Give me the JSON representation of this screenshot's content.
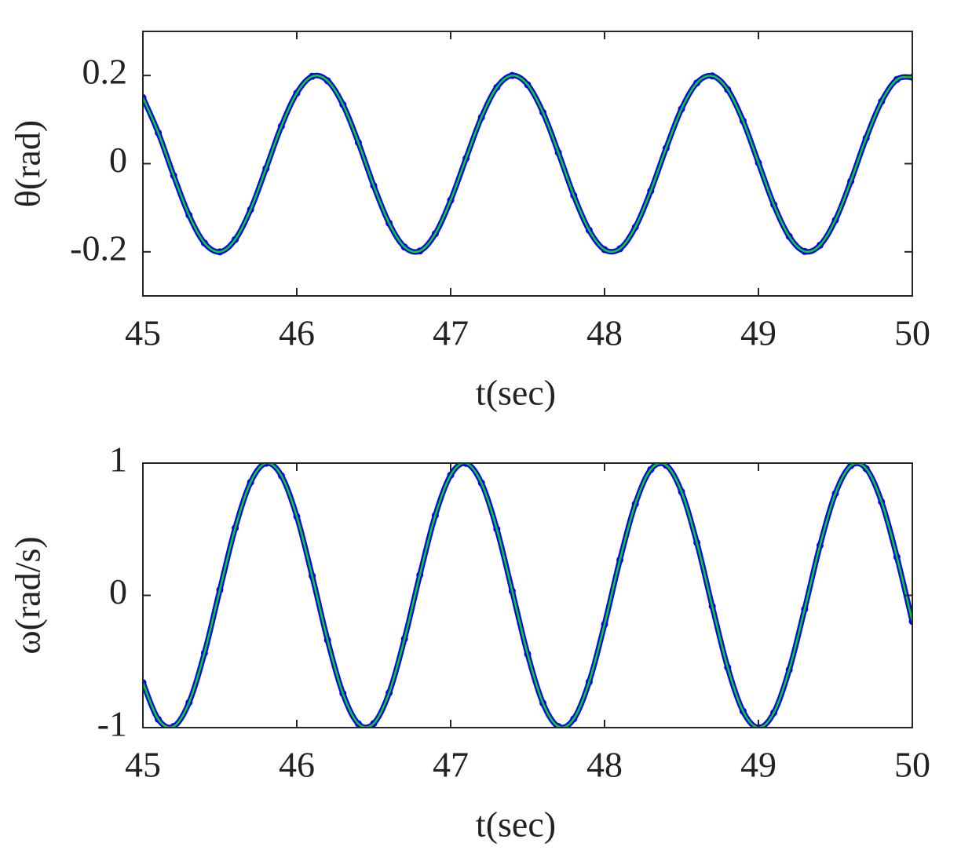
{
  "chart_data": [
    {
      "type": "line",
      "xlabel": "t(sec)",
      "ylabel": "θ(rad)",
      "xlim": [
        45,
        50
      ],
      "xticks": [
        45,
        46,
        47,
        48,
        49,
        50
      ],
      "ylim": [
        -0.3,
        0.3
      ],
      "yticks": [
        -0.2,
        0,
        0.2
      ],
      "x": [
        45,
        45.1,
        45.2,
        45.3,
        45.4,
        45.5,
        45.6,
        45.7,
        45.8,
        45.9,
        46,
        46.1,
        46.2,
        46.3,
        46.4,
        46.5,
        46.6,
        46.7,
        46.8,
        46.9,
        47,
        47.1,
        47.2,
        47.3,
        47.4,
        47.5,
        47.6,
        47.7,
        47.8,
        47.9,
        48,
        48.1,
        48.2,
        48.3,
        48.4,
        48.5,
        48.6,
        48.7,
        48.8,
        48.9,
        49,
        49.1,
        49.2,
        49.3,
        49.4,
        49.5,
        49.6,
        49.7,
        49.8,
        49.9,
        50
      ],
      "series": [
        {
          "color": "#0000ff",
          "style": "dots",
          "values": [
            0.15,
            0.07,
            -0.027,
            -0.117,
            -0.18,
            -0.2,
            -0.172,
            -0.104,
            -0.011,
            0.085,
            0.16,
            0.198,
            0.188,
            0.134,
            0.048,
            -0.05,
            -0.135,
            -0.189,
            -0.198,
            -0.159,
            -0.083,
            0.012,
            0.105,
            0.173,
            0.2,
            0.179,
            0.116,
            0.025,
            -0.072,
            -0.151,
            -0.195,
            -0.193,
            -0.144,
            -0.062,
            0.035,
            0.124,
            0.183,
            0.199,
            0.168,
            0.097,
            0.002,
            -0.093,
            -0.165,
            -0.199,
            -0.185,
            -0.128,
            -0.04,
            0.058,
            0.141,
            0.191,
            0.196
          ]
        },
        {
          "color": "#00dd00",
          "style": "line",
          "values": [
            0.15,
            0.07,
            -0.027,
            -0.117,
            -0.18,
            -0.2,
            -0.172,
            -0.104,
            -0.011,
            0.085,
            0.16,
            0.198,
            0.188,
            0.134,
            0.048,
            -0.05,
            -0.135,
            -0.189,
            -0.198,
            -0.159,
            -0.083,
            0.012,
            0.105,
            0.173,
            0.2,
            0.179,
            0.116,
            0.025,
            -0.072,
            -0.151,
            -0.195,
            -0.193,
            -0.144,
            -0.062,
            0.035,
            0.124,
            0.183,
            0.199,
            0.168,
            0.097,
            0.002,
            -0.093,
            -0.165,
            -0.199,
            -0.185,
            -0.128,
            -0.04,
            0.058,
            0.141,
            0.191,
            0.196
          ]
        }
      ]
    },
    {
      "type": "line",
      "xlabel": "t(sec)",
      "ylabel": "ω(rad/s)",
      "xlim": [
        45,
        50
      ],
      "xticks": [
        45,
        46,
        47,
        48,
        49,
        50
      ],
      "ylim": [
        -1,
        1
      ],
      "yticks": [
        -1,
        0,
        1
      ],
      "x": [
        45,
        45.1,
        45.2,
        45.3,
        45.4,
        45.5,
        45.6,
        45.7,
        45.8,
        45.9,
        46,
        46.1,
        46.2,
        46.3,
        46.4,
        46.5,
        46.6,
        46.7,
        46.8,
        46.9,
        47,
        47.1,
        47.2,
        47.3,
        47.4,
        47.5,
        47.6,
        47.7,
        47.8,
        47.9,
        48,
        48.1,
        48.2,
        48.3,
        48.4,
        48.5,
        48.6,
        48.7,
        48.8,
        48.9,
        49,
        49.1,
        49.2,
        49.3,
        49.4,
        49.5,
        49.6,
        49.7,
        49.8,
        49.9,
        50
      ],
      "series": [
        {
          "color": "#0000ff",
          "style": "dots",
          "values": [
            -0.66,
            -0.937,
            -0.991,
            -0.81,
            -0.436,
            0.041,
            0.509,
            0.855,
            0.999,
            0.905,
            0.597,
            0.147,
            -0.338,
            -0.742,
            -0.971,
            -0.969,
            -0.737,
            -0.329,
            0.155,
            0.604,
            0.909,
            0.998,
            0.85,
            0.501,
            0.032,
            -0.444,
            -0.815,
            -0.992,
            -0.934,
            -0.654,
            -0.219,
            0.268,
            0.691,
            0.951,
            0.984,
            0.784,
            0.398,
            -0.083,
            -0.544,
            -0.876,
            -1.0,
            -0.887,
            -0.563,
            -0.105,
            0.377,
            0.77,
            0.98,
            0.958,
            0.707,
            0.29,
            -0.197
          ]
        },
        {
          "color": "#00dd00",
          "style": "line",
          "values": [
            -0.66,
            -0.937,
            -0.991,
            -0.81,
            -0.436,
            0.041,
            0.509,
            0.855,
            0.999,
            0.905,
            0.597,
            0.147,
            -0.338,
            -0.742,
            -0.971,
            -0.969,
            -0.737,
            -0.329,
            0.155,
            0.604,
            0.909,
            0.998,
            0.85,
            0.501,
            0.032,
            -0.444,
            -0.815,
            -0.992,
            -0.934,
            -0.654,
            -0.219,
            0.268,
            0.691,
            0.951,
            0.984,
            0.784,
            0.398,
            -0.083,
            -0.544,
            -0.876,
            -1.0,
            -0.887,
            -0.563,
            -0.105,
            0.377,
            0.77,
            0.98,
            0.958,
            0.707,
            0.29,
            -0.197
          ]
        }
      ]
    }
  ]
}
